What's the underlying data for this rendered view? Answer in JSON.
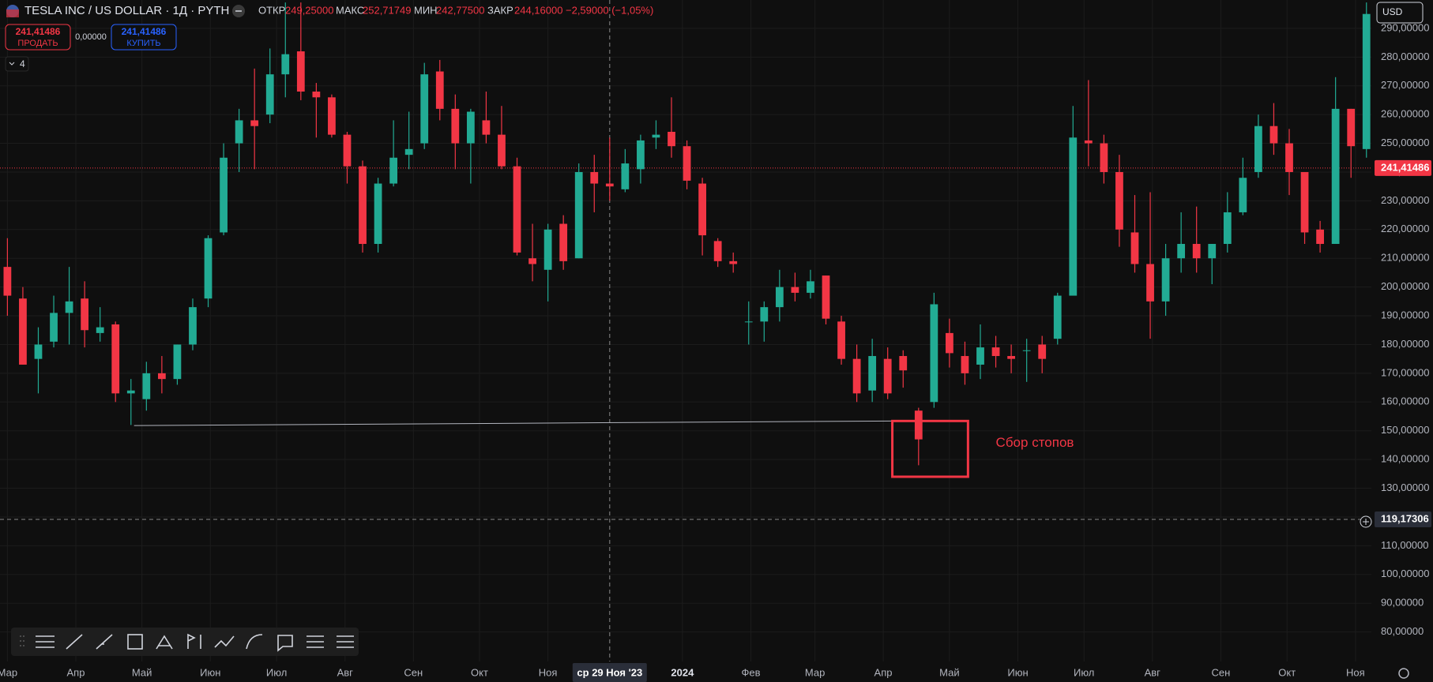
{
  "header": {
    "symbol": "TESLA INC / US DOLLAR · 1Д · PYTH",
    "ohlc": [
      {
        "label": "ОТКР",
        "value": "249,25000"
      },
      {
        "label": "МАКС",
        "value": "252,71749"
      },
      {
        "label": "МИН",
        "value": "242,77500"
      },
      {
        "label": "ЗАКР",
        "value": "244,16000"
      }
    ],
    "change": "−2,59000 (−1,05%)",
    "currency": "USD"
  },
  "trade": {
    "sell_price": "241,41486",
    "sell_label": "ПРОДАТЬ",
    "spread": "0,00000",
    "buy_price": "241,41486",
    "buy_label": "КУПИТЬ",
    "indicators": "4"
  },
  "chart_data": {
    "type": "candlestick",
    "up_color": "#22ab94",
    "down_color": "#f23645",
    "grid": true,
    "xlim": [
      -0.48,
      88.32
    ],
    "ylim": [
      69.73,
      299.86
    ],
    "xticks": [
      {
        "value": 0.0,
        "label": "Мар"
      },
      {
        "value": 4.43,
        "label": "Апр"
      },
      {
        "value": 8.71,
        "label": "Май"
      },
      {
        "value": 13.14,
        "label": "Июн"
      },
      {
        "value": 17.43,
        "label": "Июл"
      },
      {
        "value": 21.86,
        "label": "Авг"
      },
      {
        "value": 26.29,
        "label": "Сен"
      },
      {
        "value": 30.57,
        "label": "Окт"
      },
      {
        "value": 35.0,
        "label": "Ноя"
      },
      {
        "value": 43.71,
        "label": "2024"
      },
      {
        "value": 48.14,
        "label": "Фев"
      },
      {
        "value": 52.29,
        "label": "Мар"
      },
      {
        "value": 56.71,
        "label": "Апр"
      },
      {
        "value": 61.0,
        "label": "Май"
      },
      {
        "value": 65.43,
        "label": "Июн"
      },
      {
        "value": 69.71,
        "label": "Июл"
      },
      {
        "value": 74.14,
        "label": "Авг"
      },
      {
        "value": 78.57,
        "label": "Сен"
      },
      {
        "value": 82.86,
        "label": "Окт"
      },
      {
        "value": 87.29,
        "label": "Ноя"
      }
    ],
    "yticks": [
      {
        "value": 80,
        "label": "80,00000"
      },
      {
        "value": 90,
        "label": "90,00000"
      },
      {
        "value": 100,
        "label": "100,00000"
      },
      {
        "value": 110,
        "label": "110,00000"
      },
      {
        "value": 120,
        "label": "120,00000"
      },
      {
        "value": 130,
        "label": "130,00000"
      },
      {
        "value": 140,
        "label": "140,00000"
      },
      {
        "value": 150,
        "label": "150,00000"
      },
      {
        "value": 160,
        "label": "160,00000"
      },
      {
        "value": 170,
        "label": "170,00000"
      },
      {
        "value": 180,
        "label": "180,00000"
      },
      {
        "value": 190,
        "label": "190,00000"
      },
      {
        "value": 200,
        "label": "200,00000"
      },
      {
        "value": 210,
        "label": "210,00000"
      },
      {
        "value": 220,
        "label": "220,00000"
      },
      {
        "value": 230,
        "label": "230,00000"
      },
      {
        "value": 240,
        "label": "240,00000"
      },
      {
        "value": 250,
        "label": "250,00000"
      },
      {
        "value": 260,
        "label": "260,00000"
      },
      {
        "value": 270,
        "label": "270,00000"
      },
      {
        "value": 280,
        "label": "280,00000"
      },
      {
        "value": 290,
        "label": "290,00000"
      }
    ],
    "candles": [
      [
        207,
        217,
        190,
        197
      ],
      [
        196,
        200,
        173,
        173
      ],
      [
        175,
        186,
        163,
        180
      ],
      [
        181,
        197,
        179,
        191
      ],
      [
        191,
        207,
        180,
        195
      ],
      [
        196,
        202,
        179,
        185
      ],
      [
        184,
        193,
        181,
        186
      ],
      [
        187,
        188,
        160,
        163
      ],
      [
        163,
        168,
        152,
        164
      ],
      [
        161,
        174,
        157,
        170
      ],
      [
        170,
        176,
        163,
        168
      ],
      [
        168,
        180,
        166,
        180
      ],
      [
        180,
        196,
        178,
        193
      ],
      [
        196,
        218,
        193,
        217
      ],
      [
        219,
        250,
        218,
        245
      ],
      [
        250,
        262,
        240,
        258
      ],
      [
        258,
        276,
        241,
        256
      ],
      [
        260,
        283,
        257,
        274
      ],
      [
        274,
        299,
        266,
        281
      ],
      [
        282,
        299,
        265,
        268
      ],
      [
        268,
        271,
        252,
        266
      ],
      [
        266,
        267,
        252,
        253
      ],
      [
        253,
        254,
        236,
        242
      ],
      [
        242,
        244,
        212,
        215
      ],
      [
        215,
        238,
        212,
        236
      ],
      [
        236,
        258,
        235,
        245
      ],
      [
        246,
        261,
        241,
        248
      ],
      [
        250,
        278,
        248,
        274
      ],
      [
        275,
        279,
        258,
        262
      ],
      [
        262,
        267,
        241,
        250
      ],
      [
        250,
        262,
        236,
        261
      ],
      [
        258,
        268,
        250,
        253
      ],
      [
        253,
        263,
        241,
        242
      ],
      [
        242,
        245,
        211,
        212
      ],
      [
        210,
        222,
        202,
        208
      ],
      [
        206,
        222,
        195,
        220
      ],
      [
        222,
        225,
        206,
        209
      ],
      [
        210,
        243,
        210,
        240
      ],
      [
        240,
        246,
        226,
        236
      ],
      [
        236,
        252,
        230,
        235
      ],
      [
        234,
        248,
        233,
        243
      ],
      [
        241,
        253,
        236,
        251
      ],
      [
        252,
        258,
        248,
        253
      ],
      [
        254,
        266,
        245,
        249
      ],
      [
        249,
        251,
        234,
        237
      ],
      [
        236,
        238,
        211,
        218
      ],
      [
        216,
        217,
        207,
        209
      ],
      [
        209,
        212,
        205,
        208
      ],
      [
        188,
        195,
        180,
        188
      ],
      [
        188,
        195,
        181,
        193
      ],
      [
        193,
        206,
        188,
        200
      ],
      [
        200,
        205,
        195,
        198
      ],
      [
        198,
        206,
        196,
        202
      ],
      [
        204,
        204,
        187,
        189
      ],
      [
        188,
        190,
        173,
        175
      ],
      [
        175,
        180,
        160,
        163
      ],
      [
        164,
        182,
        160,
        176
      ],
      [
        175,
        179,
        161,
        163
      ],
      [
        176,
        178,
        165,
        171
      ],
      [
        157,
        158,
        138,
        147
      ],
      [
        160,
        198,
        158,
        194
      ],
      [
        184,
        189,
        172,
        177
      ],
      [
        176,
        181,
        166,
        170
      ],
      [
        173,
        187,
        168,
        179
      ],
      [
        179,
        183,
        172,
        176
      ],
      [
        176,
        180,
        170,
        175
      ],
      [
        178,
        182,
        167,
        178
      ],
      [
        180,
        183,
        170,
        175
      ],
      [
        182,
        198,
        180,
        197
      ],
      [
        197,
        263,
        197,
        252
      ],
      [
        251,
        272,
        242,
        250
      ],
      [
        250,
        253,
        236,
        240
      ],
      [
        240,
        246,
        214,
        220
      ],
      [
        219,
        232,
        205,
        208
      ],
      [
        208,
        233,
        182,
        195
      ],
      [
        195,
        215,
        190,
        210
      ],
      [
        210,
        226,
        205,
        215
      ],
      [
        215,
        228,
        205,
        210
      ],
      [
        210,
        215,
        201,
        215
      ],
      [
        215,
        233,
        212,
        226
      ],
      [
        226,
        245,
        225,
        238
      ],
      [
        240,
        260,
        238,
        256
      ],
      [
        256,
        264,
        246,
        250
      ],
      [
        250,
        255,
        232,
        240
      ],
      [
        240,
        240,
        215,
        219
      ],
      [
        220,
        223,
        212,
        215
      ],
      [
        215,
        273,
        215,
        262
      ],
      [
        262,
        262,
        238,
        249
      ],
      [
        248,
        299,
        245,
        295
      ]
    ],
    "last_price": {
      "value": 241.41486,
      "label": "241,41486"
    },
    "crosshair": {
      "x": {
        "value": 39.0,
        "label": "ср 29 Ноя '23"
      },
      "y": {
        "value": 119.17306,
        "label": "119,17306"
      }
    },
    "trend_line": {
      "x": [
        8.2,
        57.3
      ],
      "y": [
        151.8,
        153.4
      ],
      "color": "#b2b5be"
    },
    "box": {
      "x": [
        57.3,
        62.2
      ],
      "y": [
        153.4,
        134.0
      ],
      "color": "#f23645"
    },
    "annotation": {
      "text": "Сбор стопов",
      "x": 64.0,
      "y": 145.6,
      "color": "#f23645"
    }
  }
}
